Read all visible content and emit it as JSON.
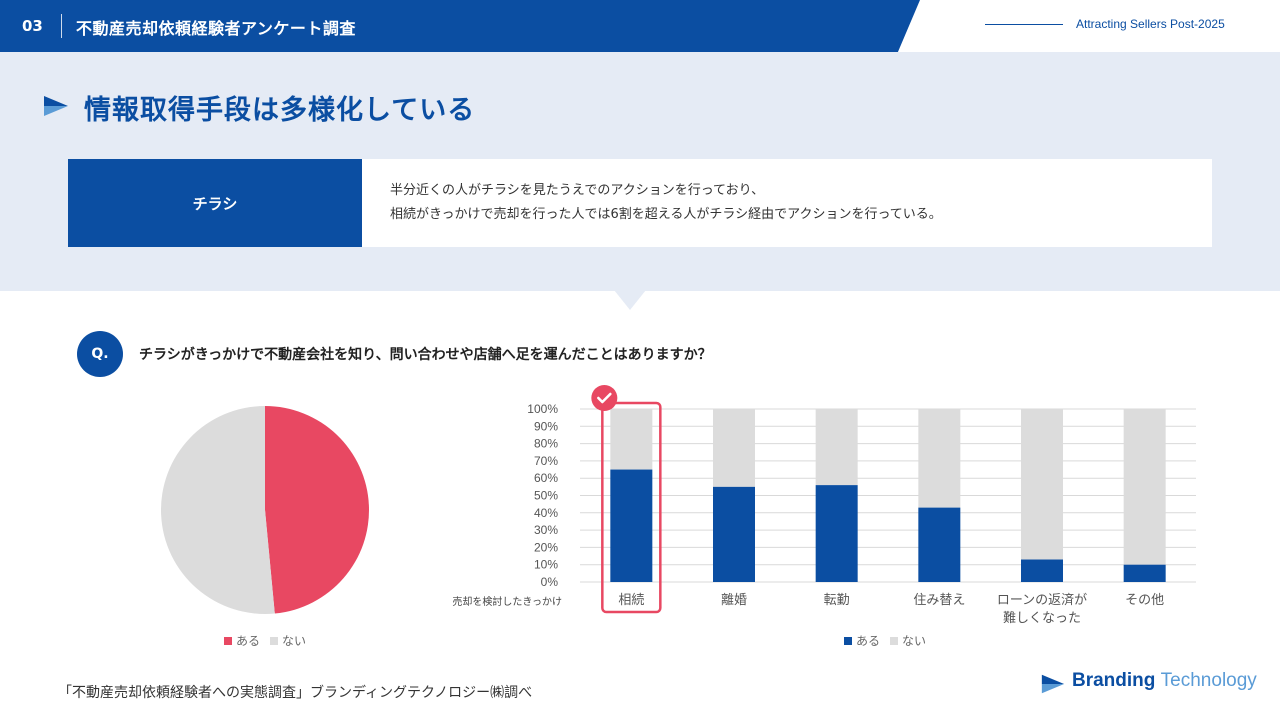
{
  "header": {
    "slide_number": "03",
    "title": "不動産売却依頼経験者アンケート調査",
    "tagline": "Attracting Sellers Post-2025"
  },
  "headline": "情報取得手段は多様化している",
  "summary": {
    "label": "チラシ",
    "line1": "半分近くの人がチラシを見たうえでのアクションを行っており、",
    "line2": "相続がきっかけで売却を行った人では6割を超える人がチラシ経由でアクションを行っている。"
  },
  "question": {
    "badge": "Q.",
    "text": "チラシがきっかけで不動産会社を知り、問い合わせや店舗へ足を運んだことはありますか？"
  },
  "colors": {
    "brand_blue": "#0b4ea2",
    "pie_yes": "#e84862",
    "pie_no": "#dcdcdc",
    "bar_yes": "#0b4ea2",
    "bar_no": "#dcdcdc",
    "highlight": "#e84862"
  },
  "chart_data": [
    {
      "type": "pie",
      "labels": [
        "ある",
        "ない"
      ],
      "values": [
        48.5,
        51.5
      ],
      "legend": "bottom"
    },
    {
      "type": "bar",
      "stacked": true,
      "category_axis_label": "売却を検討したきっかけ",
      "categories": [
        "相続",
        "離婚",
        "転勤",
        "住み替え",
        "ローンの返済が難しくなった",
        "その他"
      ],
      "series": [
        {
          "name": "ある",
          "values": [
            65,
            55,
            56,
            43,
            13,
            10
          ]
        },
        {
          "name": "ない",
          "values": [
            35,
            45,
            44,
            57,
            87,
            90
          ]
        }
      ],
      "yticks": [
        "0%",
        "10%",
        "20%",
        "30%",
        "40%",
        "50%",
        "60%",
        "70%",
        "80%",
        "90%",
        "100%"
      ],
      "ylim": [
        0,
        100
      ],
      "highlighted_category": "相続",
      "grid": true,
      "legend": "bottom"
    }
  ],
  "footer": {
    "source": "「不動産売却依頼経験者への実態調査」ブランディングテクノロジー㈱調べ",
    "logo_word1": "Branding",
    "logo_word2": "Technology"
  }
}
